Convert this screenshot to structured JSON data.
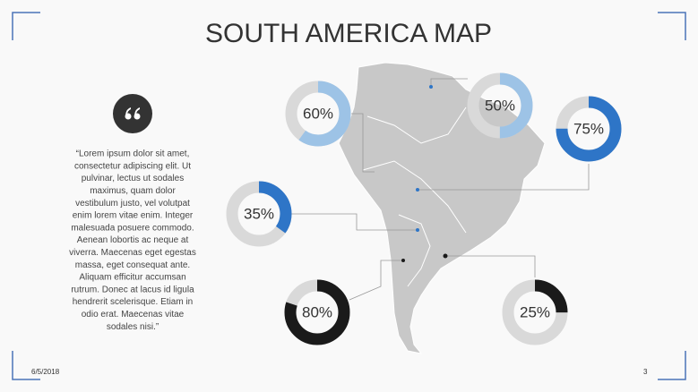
{
  "header": {
    "title": "SOUTH AMERICA MAP"
  },
  "quote": {
    "lines": [
      "“Lorem ipsum dolor sit amet,",
      "consectetur adipiscing elit. Ut",
      "pulvinar, lectus ut sodales",
      "maximus, quam dolor",
      "vestibulum justo, vel volutpat",
      "enim lorem vitae enim. Integer",
      "malesuada posuere commodo.",
      "Aenean lobortis ac neque at",
      "viverra. Maecenas eget egestas",
      "massa, eget consequat ante.",
      "Aliquam efficitur accumsan",
      "rutrum. Donec at lacus id ligula",
      "hendrerit scelerisque. Etiam in",
      "odio erat. Maecenas vitae",
      "sodales nisi.”"
    ]
  },
  "donuts": [
    {
      "value": 60,
      "label": "60%",
      "color": "#9dc3e6"
    },
    {
      "value": 50,
      "label": "50%",
      "color": "#9dc3e6"
    },
    {
      "value": 75,
      "label": "75%",
      "color": "#2e75c7"
    },
    {
      "value": 35,
      "label": "35%",
      "color": "#2e75c7"
    },
    {
      "value": 80,
      "label": "80%",
      "color": "#1a1a1a"
    },
    {
      "value": 25,
      "label": "25%",
      "color": "#1a1a1a"
    }
  ],
  "footer": {
    "date": "6/5/2018",
    "page": "3"
  }
}
